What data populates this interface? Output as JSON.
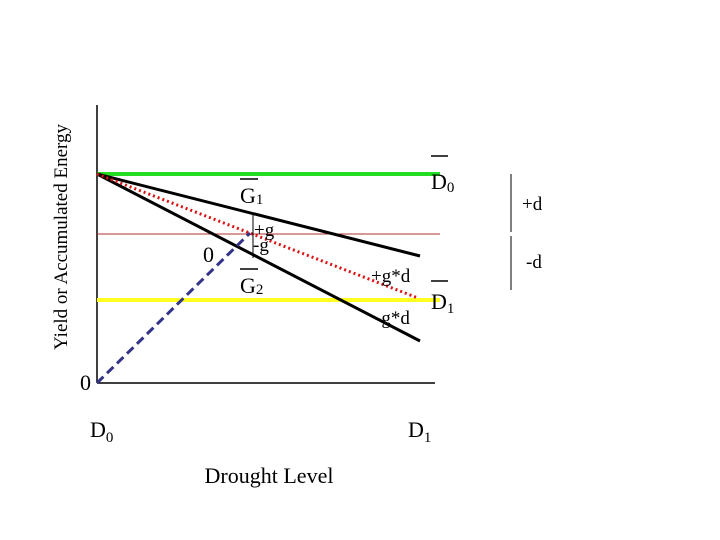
{
  "axis": {
    "ylabel": "Yield or Accumulated Energy",
    "xlabel": "Drought Level",
    "origin_label": "0",
    "x_ticks": [
      {
        "base": "D",
        "sub": "0"
      },
      {
        "base": "D",
        "sub": "1"
      }
    ]
  },
  "labels": {
    "d0_bar": {
      "base": "D",
      "sub": "0"
    },
    "d1_bar": {
      "base": "D",
      "sub": "1"
    },
    "g1": {
      "base": "G",
      "sub": "1"
    },
    "g2": {
      "base": "G",
      "sub": "2"
    },
    "plus_g": "+g",
    "minus_g": "-g",
    "zero_mid": "0",
    "plus_g_d": "+g*d",
    "minus_g_d": "-g*d",
    "plus_d": "+d",
    "minus_d": "-d"
  },
  "colors": {
    "green_line": "#22dd22",
    "yellow_line": "#ffff22",
    "red_line": "#b03030",
    "dotted_red": "#dd1111",
    "dashed_blue": "#333388",
    "black": "#000000"
  }
}
